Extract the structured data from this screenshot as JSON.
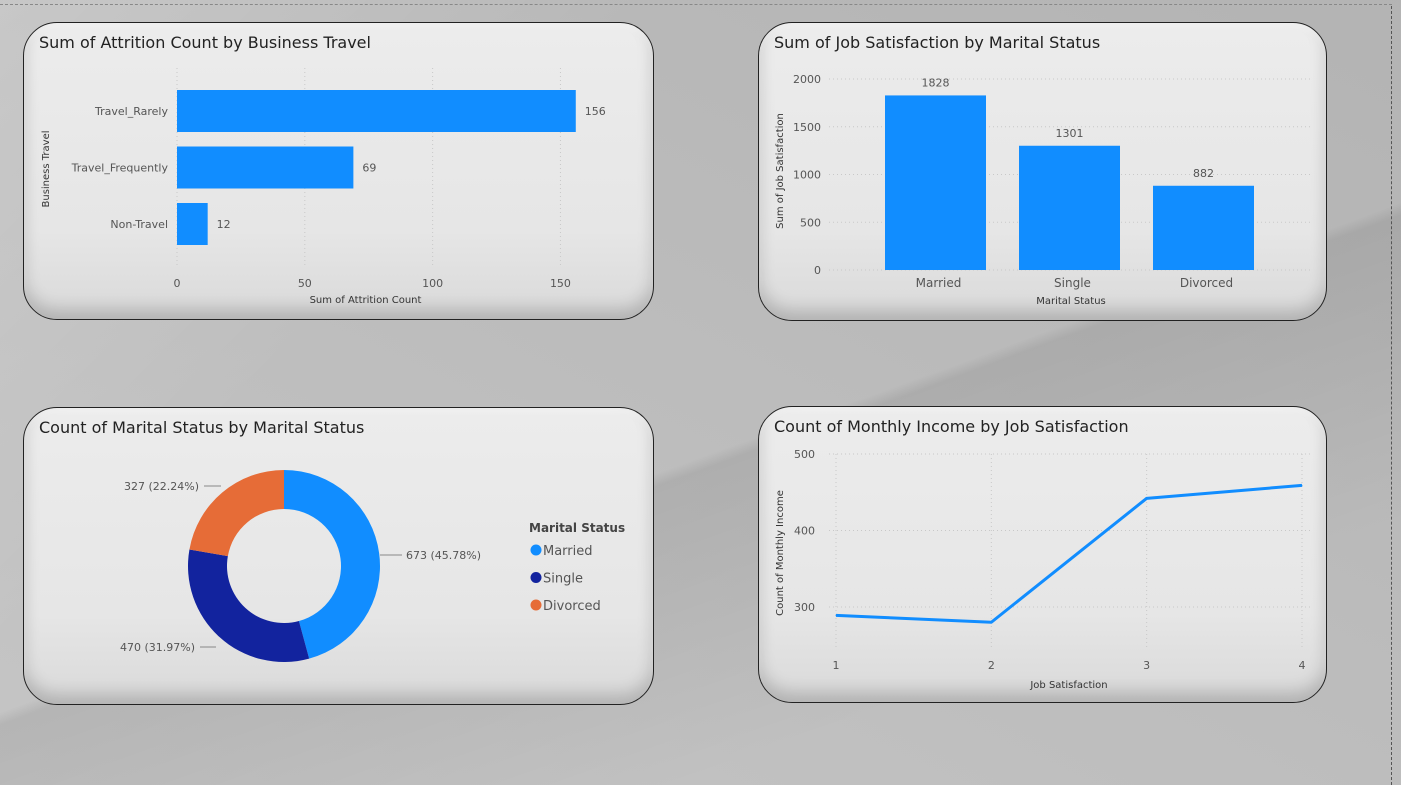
{
  "colors": {
    "blue": "#118DFF",
    "navy": "#12239E",
    "orange": "#E66C37",
    "line": "#118DFF"
  },
  "chart_data": [
    {
      "type": "bar",
      "orientation": "horizontal",
      "title": "Sum of Attrition Count by Business Travel",
      "xlabel": "Sum of Attrition Count",
      "ylabel": "Business Travel",
      "categories": [
        "Travel_Rarely",
        "Travel_Frequently",
        "Non-Travel"
      ],
      "values": [
        156,
        69,
        12
      ],
      "xlim": [
        0,
        160
      ],
      "xticks": [
        0,
        50,
        100,
        150
      ],
      "grid": true
    },
    {
      "type": "bar",
      "orientation": "vertical",
      "title": "Sum of Job Satisfaction by Marital Status",
      "xlabel": "Marital Status",
      "ylabel": "Sum of Job Satisfaction",
      "categories": [
        "Married",
        "Single",
        "Divorced"
      ],
      "values": [
        1828,
        1301,
        882
      ],
      "ylim": [
        0,
        2000
      ],
      "yticks": [
        0,
        500,
        1000,
        1500,
        2000
      ],
      "grid": true
    },
    {
      "type": "pie",
      "variant": "donut",
      "title": "Count of Marital Status by Marital Status",
      "legend_title": "Marital Status",
      "legend_position": "right",
      "slices": [
        {
          "label": "Married",
          "value": 673,
          "percent": "45.78%",
          "data_label": "673 (45.78%)"
        },
        {
          "label": "Single",
          "value": 470,
          "percent": "31.97%",
          "data_label": "470 (31.97%)"
        },
        {
          "label": "Divorced",
          "value": 327,
          "percent": "22.24%",
          "data_label": "327 (22.24%)"
        }
      ]
    },
    {
      "type": "line",
      "title": "Count of Monthly Income by Job Satisfaction",
      "xlabel": "Job Satisfaction",
      "ylabel": "Count of Monthly Income",
      "x": [
        1,
        2,
        3,
        4
      ],
      "y": [
        289,
        280,
        442,
        459
      ],
      "ylim": [
        245,
        500
      ],
      "yticks": [
        300,
        400,
        500
      ],
      "xticks": [
        1,
        2,
        3,
        4
      ],
      "grid": true
    }
  ]
}
